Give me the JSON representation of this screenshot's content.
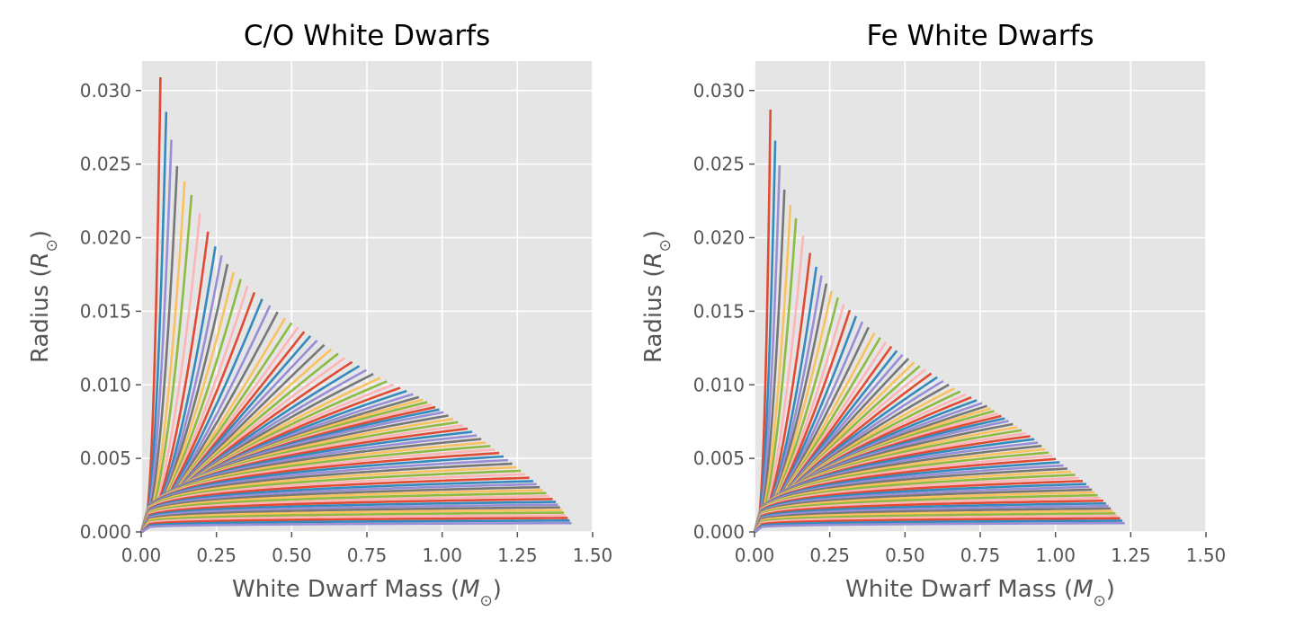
{
  "chart_data": [
    {
      "type": "line",
      "title": "C/O White Dwarfs",
      "xlabel": "White Dwarf Mass (M⊙)",
      "ylabel": "Radius (R⊙)",
      "xlim": [
        0.0,
        1.5
      ],
      "ylim": [
        0.0,
        0.032
      ],
      "xticks": [
        "0.00",
        "0.25",
        "0.50",
        "0.75",
        "1.00",
        "1.25",
        "1.50"
      ],
      "yticks": [
        "0.000",
        "0.005",
        "0.010",
        "0.015",
        "0.020",
        "0.025",
        "0.030"
      ],
      "grid": true,
      "background": "#e5e5e5",
      "series_count": 80,
      "chandrasekhar_mass": 1.44,
      "curve_tip_points": [
        [
          0.064,
          0.0309
        ],
        [
          0.075,
          0.0298
        ],
        [
          0.088,
          0.0278
        ],
        [
          0.12,
          0.0248
        ],
        [
          0.17,
          0.0228
        ],
        [
          0.24,
          0.0196
        ],
        [
          0.3,
          0.0178
        ],
        [
          0.38,
          0.0162
        ],
        [
          0.48,
          0.0145
        ],
        [
          0.57,
          0.0132
        ],
        [
          0.68,
          0.0118
        ],
        [
          0.8,
          0.0104
        ],
        [
          0.92,
          0.0092
        ],
        [
          1.0,
          0.0082
        ],
        [
          1.1,
          0.0068
        ],
        [
          1.2,
          0.0052
        ],
        [
          1.3,
          0.0035
        ],
        [
          1.38,
          0.002
        ],
        [
          1.43,
          0.0006
        ]
      ]
    },
    {
      "type": "line",
      "title": "Fe White Dwarfs",
      "xlabel": "White Dwarf Mass (M⊙)",
      "ylabel": "Radius (R⊙)",
      "xlim": [
        0.0,
        1.5
      ],
      "ylim": [
        0.0,
        0.032
      ],
      "xticks": [
        "0.00",
        "0.25",
        "0.50",
        "0.75",
        "1.00",
        "1.25",
        "1.50"
      ],
      "yticks": [
        "0.000",
        "0.005",
        "0.010",
        "0.015",
        "0.020",
        "0.025",
        "0.030"
      ],
      "grid": true,
      "background": "#e5e5e5",
      "series_count": 80,
      "chandrasekhar_mass": 1.24,
      "curve_tip_points": [
        [
          0.053,
          0.0287
        ],
        [
          0.062,
          0.0276
        ],
        [
          0.073,
          0.026
        ],
        [
          0.1,
          0.0232
        ],
        [
          0.14,
          0.0212
        ],
        [
          0.2,
          0.0182
        ],
        [
          0.25,
          0.0165
        ],
        [
          0.32,
          0.015
        ],
        [
          0.4,
          0.0135
        ],
        [
          0.48,
          0.0122
        ],
        [
          0.57,
          0.011
        ],
        [
          0.67,
          0.0097
        ],
        [
          0.77,
          0.0086
        ],
        [
          0.84,
          0.0076
        ],
        [
          0.93,
          0.0063
        ],
        [
          1.01,
          0.0048
        ],
        [
          1.1,
          0.0033
        ],
        [
          1.17,
          0.0019
        ],
        [
          1.23,
          0.0006
        ]
      ]
    }
  ],
  "colors": [
    "#E24A33",
    "#348ABD",
    "#988ED5",
    "#777777",
    "#FBC15E",
    "#8EBA42",
    "#FFB5B8"
  ]
}
